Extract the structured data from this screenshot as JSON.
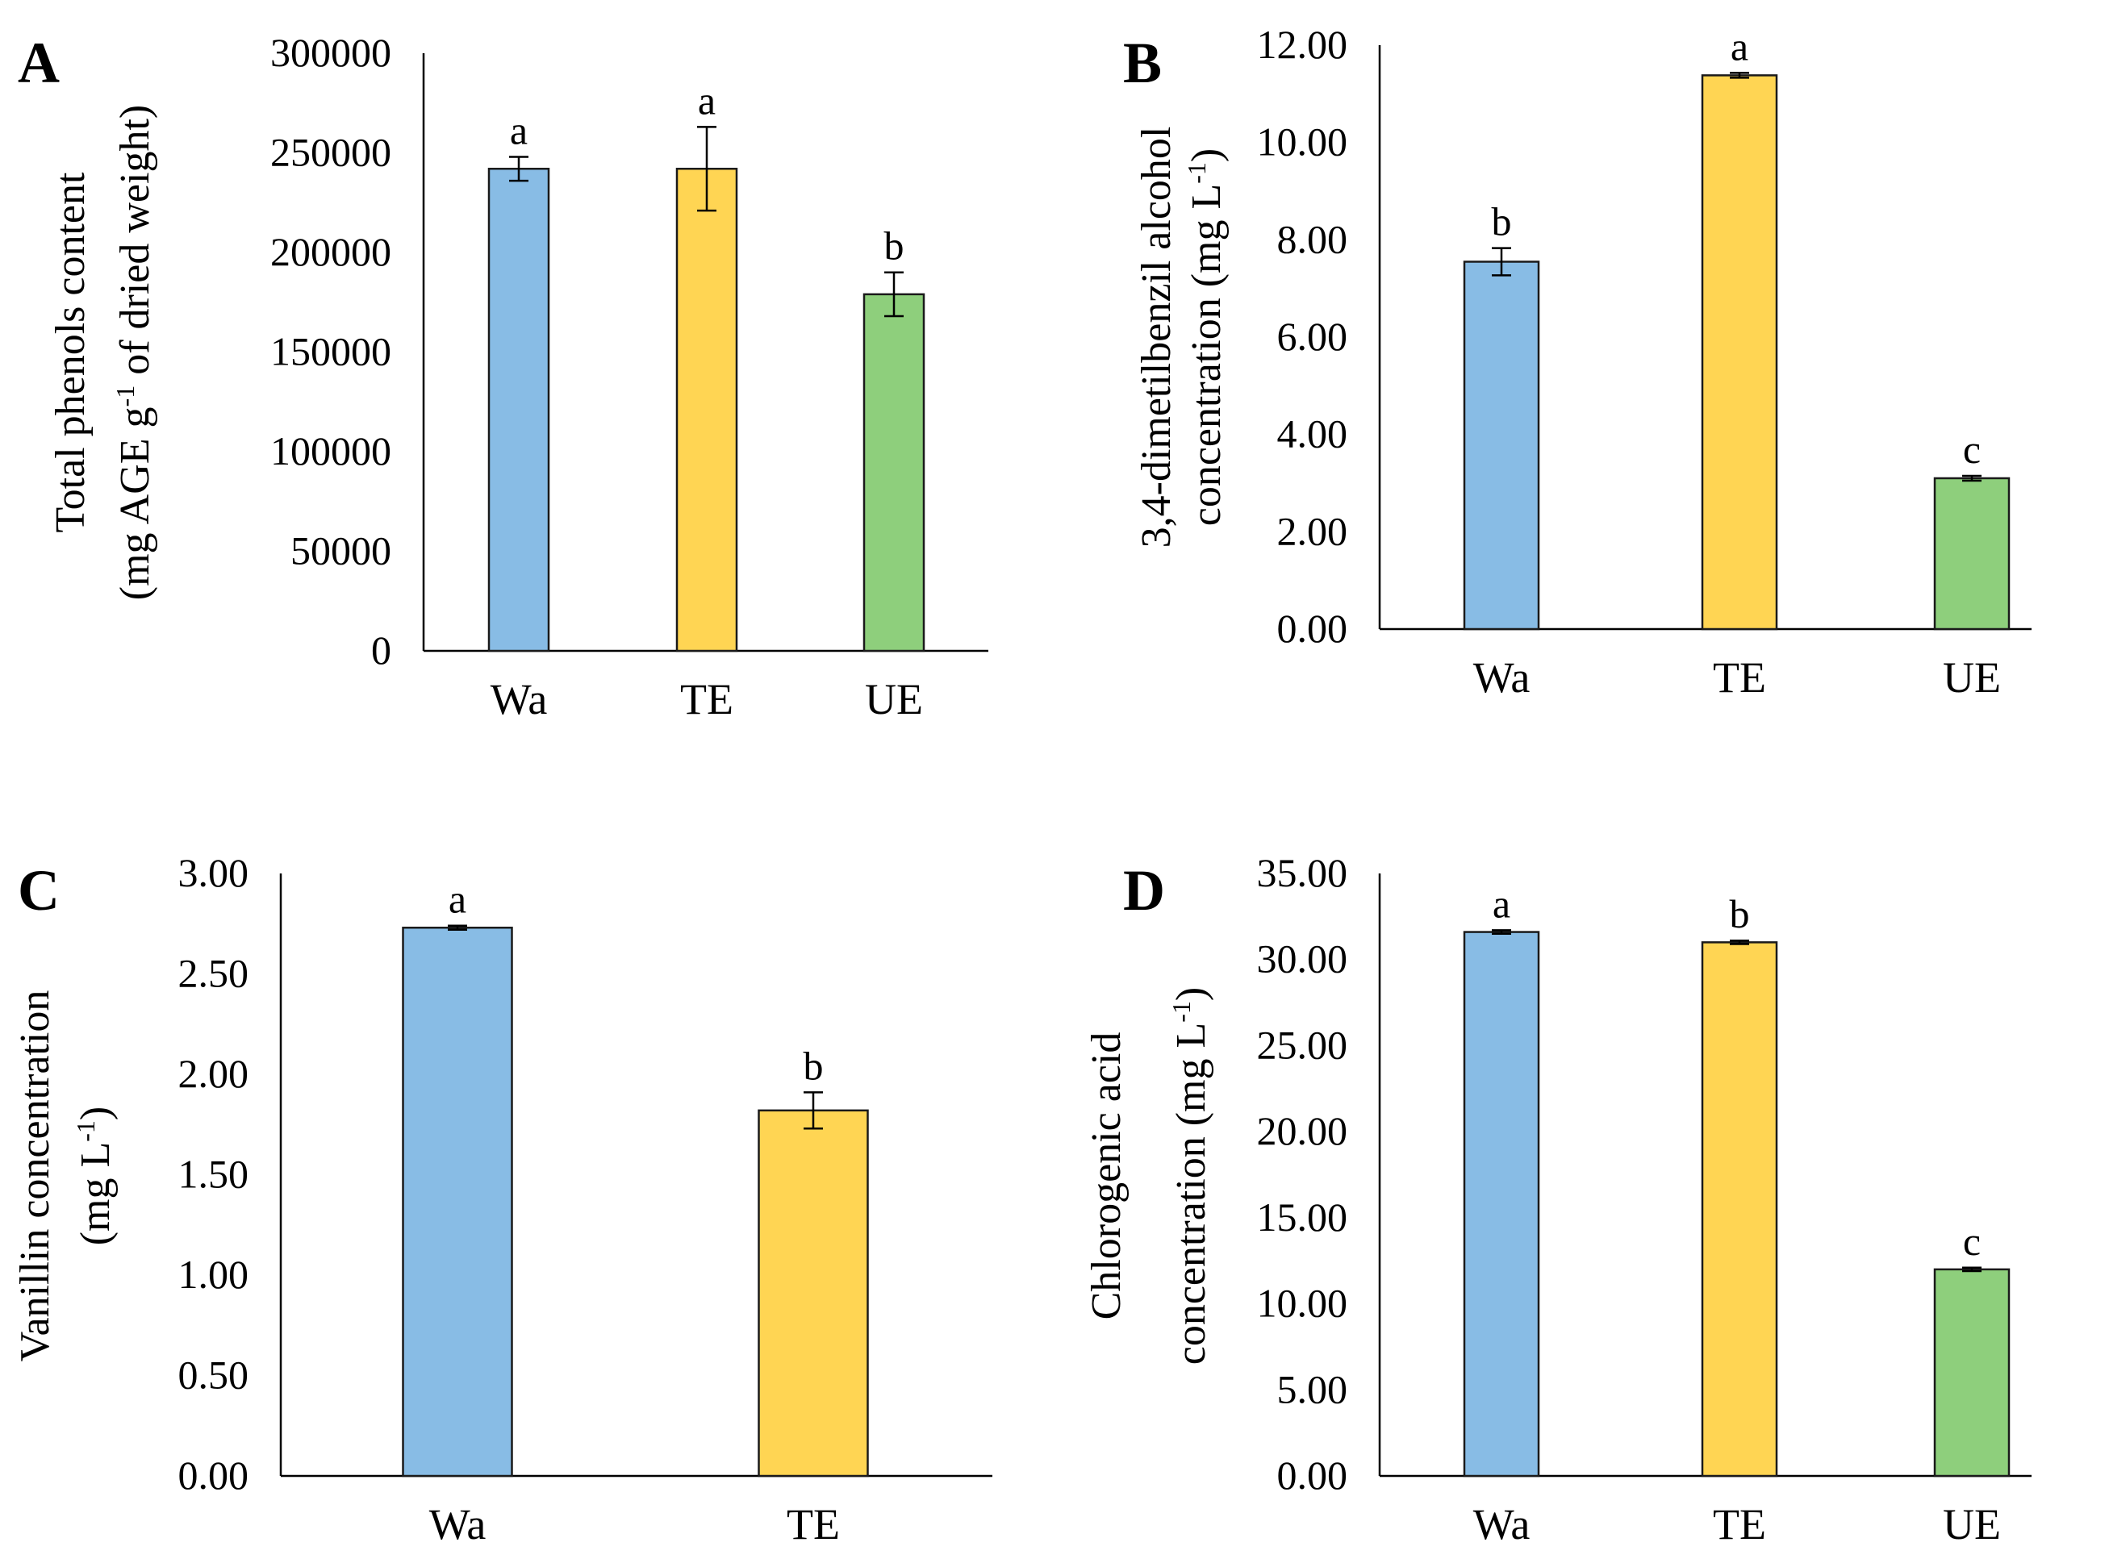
{
  "colors": {
    "Wa": "#88bce5",
    "TE": "#ffd553",
    "UE": "#8ecf7c",
    "axis": "#000000"
  },
  "chart_data": [
    {
      "type": "bar",
      "panel": "A",
      "categories": [
        "Wa",
        "TE",
        "UE"
      ],
      "values": [
        242000,
        242000,
        179000
      ],
      "errors": [
        6000,
        21000,
        11000
      ],
      "significance": [
        "a",
        "a",
        "b"
      ],
      "ylabel_line1": "Total phenols content",
      "ylabel_line2_pre": "(mg AGE g",
      "ylabel_line2_sup": "-1",
      "ylabel_line2_post": " of dried weight)",
      "ylim": [
        0,
        300000
      ],
      "yticks": [
        "0",
        "50000",
        "100000",
        "150000",
        "200000",
        "250000",
        "300000"
      ]
    },
    {
      "type": "bar",
      "panel": "B",
      "categories": [
        "Wa",
        "TE",
        "UE"
      ],
      "values": [
        7.55,
        11.38,
        3.1
      ],
      "errors": [
        0.28,
        0.05,
        0.05
      ],
      "significance": [
        "b",
        "a",
        "c"
      ],
      "ylabel_line1": "3,4-dimetilbenzil alcohol",
      "ylabel_line2_pre": "concentration (mg L",
      "ylabel_line2_sup": "-1",
      "ylabel_line2_post": ")",
      "ylim": [
        0,
        12
      ],
      "yticks": [
        "0.00",
        "2.00",
        "4.00",
        "6.00",
        "8.00",
        "10.00",
        "12.00"
      ]
    },
    {
      "type": "bar",
      "panel": "C",
      "categories": [
        "Wa",
        "TE"
      ],
      "values": [
        2.73,
        1.82
      ],
      "errors": [
        0.01,
        0.09
      ],
      "significance": [
        "a",
        "b"
      ],
      "ylabel_line1": "Vanillin concentration",
      "ylabel_line2_pre": "(mg L",
      "ylabel_line2_sup": "-1",
      "ylabel_line2_post": ")",
      "ylim": [
        0,
        3
      ],
      "yticks": [
        "0.00",
        "0.50",
        "1.00",
        "1.50",
        "2.00",
        "2.50",
        "3.00"
      ]
    },
    {
      "type": "bar",
      "panel": "D",
      "categories": [
        "Wa",
        "TE",
        "UE"
      ],
      "values": [
        31.6,
        31.0,
        12.0
      ],
      "errors": [
        0.1,
        0.1,
        0.1
      ],
      "significance": [
        "a",
        "b",
        "c"
      ],
      "ylabel_line1": "Chlorogenic acid",
      "ylabel_line2_pre": "concentration (mg L",
      "ylabel_line2_sup": "-1",
      "ylabel_line2_post": ")",
      "ylim": [
        0,
        35
      ],
      "yticks": [
        "0.00",
        "5.00",
        "10.00",
        "15.00",
        "20.00",
        "25.00",
        "30.00",
        "35.00"
      ]
    }
  ]
}
